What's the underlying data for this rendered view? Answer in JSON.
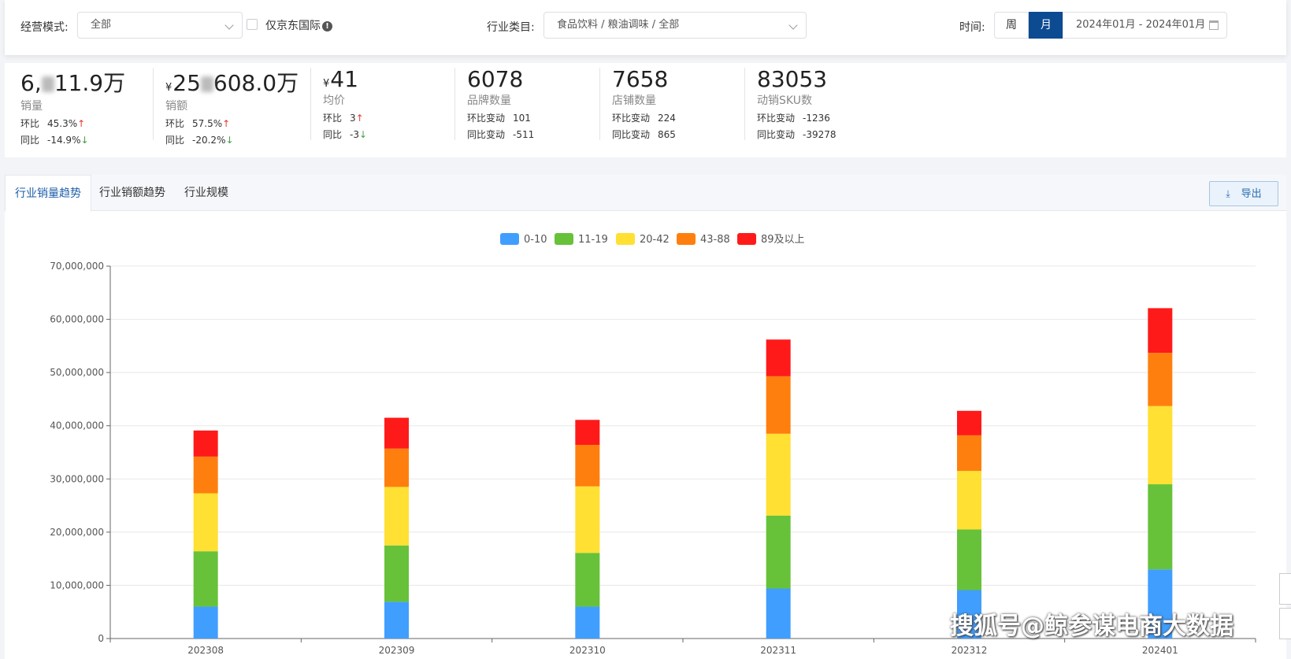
{
  "filters": {
    "mode_label": "经营模式:",
    "mode_value": "全部",
    "jd_intl_label": "仅京东国际",
    "industry_label": "行业类目:",
    "industry_value": "食品饮料 / 粮油调味 / 全部",
    "time_label": "时间:",
    "week_label": "周",
    "month_label": "月",
    "date_range": "2024年01月 - 2024年01月"
  },
  "stats": [
    {
      "value_pre": "6,",
      "value_post": "11.9万",
      "name": "销量",
      "l1_label": "环比",
      "l1_value": "45.3%",
      "l1_dir": "↑",
      "l2_label": "同比",
      "l2_value": "-14.9%",
      "l2_dir": "↓"
    },
    {
      "yen": "¥",
      "value_pre": "25",
      "value_post": "608.0万",
      "name": "销额",
      "l1_label": "环比",
      "l1_value": "57.5%",
      "l1_dir": "↑",
      "l2_label": "同比",
      "l2_value": "-20.2%",
      "l2_dir": "↓"
    },
    {
      "yen": "¥",
      "value": "41",
      "name": "均价",
      "l1_label": "环比",
      "l1_value": "3",
      "l1_dir": "↑",
      "l2_label": "同比",
      "l2_value": "-3",
      "l2_dir": "↓"
    },
    {
      "value": "6078",
      "name": "品牌数量",
      "l1_label": "环比变动",
      "l1_value": "101",
      "l2_label": "同比变动",
      "l2_value": "-511"
    },
    {
      "value": "7658",
      "name": "店铺数量",
      "l1_label": "环比变动",
      "l1_value": "224",
      "l2_label": "同比变动",
      "l2_value": "865"
    },
    {
      "value": "83053",
      "name": "动销SKU数",
      "l1_label": "环比变动",
      "l1_value": "-1236",
      "l2_label": "同比变动",
      "l2_value": "-39278"
    }
  ],
  "tabs": [
    "行业销量趋势",
    "行业销额趋势",
    "行业规模"
  ],
  "export_label": "导出",
  "watermark": "搜狐号@鲸参谋电商大数据",
  "chart_data": {
    "type": "bar",
    "stacked": true,
    "categories": [
      "202308",
      "202309",
      "202310",
      "202311",
      "202312",
      "202401"
    ],
    "series": [
      {
        "name": "0-10",
        "color": "#409eff",
        "values": [
          6000000,
          6900000,
          6000000,
          9400000,
          9100000,
          13000000
        ]
      },
      {
        "name": "11-19",
        "color": "#67c23a",
        "values": [
          10400000,
          10600000,
          10100000,
          13700000,
          11400000,
          16000000
        ]
      },
      {
        "name": "20-42",
        "color": "#ffe033",
        "values": [
          10900000,
          11000000,
          12500000,
          15400000,
          11000000,
          14700000
        ]
      },
      {
        "name": "43-88",
        "color": "#ff7f0e",
        "values": [
          6900000,
          7200000,
          7800000,
          10800000,
          6700000,
          10000000
        ]
      },
      {
        "name": "89及以上",
        "color": "#ff1a1a",
        "values": [
          4900000,
          5800000,
          4700000,
          6900000,
          4600000,
          8400000
        ]
      }
    ],
    "ylim": [
      0,
      70000000
    ],
    "yticks": [
      "0",
      "10,000,000",
      "20,000,000",
      "30,000,000",
      "40,000,000",
      "50,000,000",
      "60,000,000",
      "70,000,000"
    ],
    "grid": true,
    "legend": "top-center"
  }
}
